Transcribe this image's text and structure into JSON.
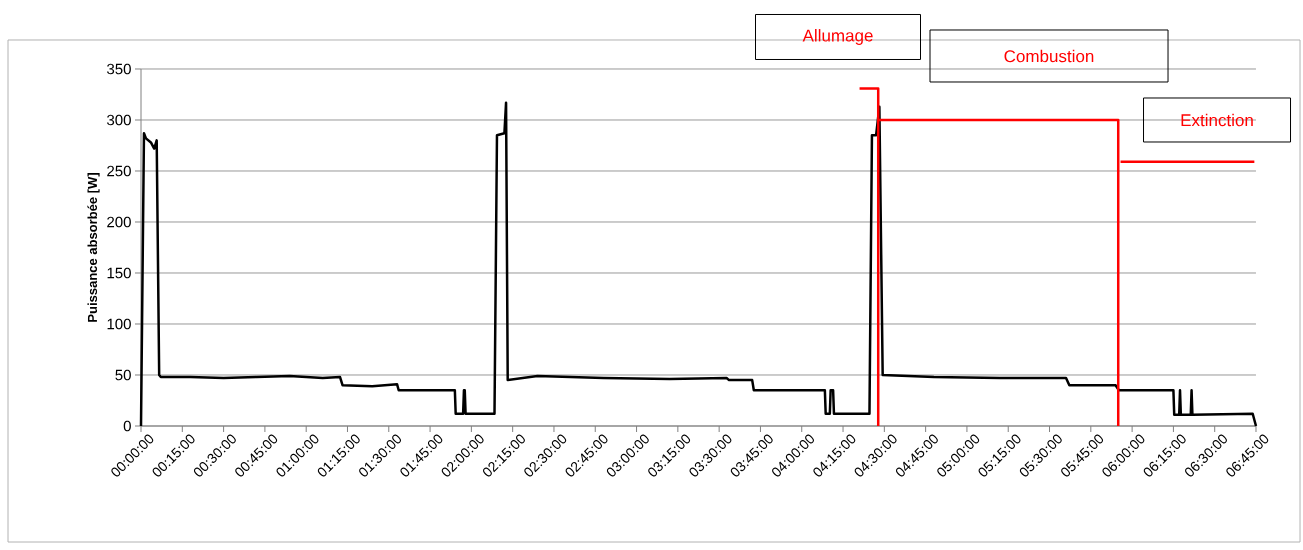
{
  "chart_data": {
    "type": "line",
    "ylabel": "Puissance absorbée [W]",
    "xlim": [
      0,
      6.75
    ],
    "ylim": [
      0,
      350
    ],
    "yticks": [
      0,
      50,
      100,
      150,
      200,
      250,
      300,
      350
    ],
    "xticks": [
      {
        "value": 0,
        "label": "00:00:00"
      },
      {
        "value": 0.25,
        "label": "00:15:00"
      },
      {
        "value": 0.5,
        "label": "00:30:00"
      },
      {
        "value": 0.75,
        "label": "00:45:00"
      },
      {
        "value": 1,
        "label": "01:00:00"
      },
      {
        "value": 1.25,
        "label": "01:15:00"
      },
      {
        "value": 1.5,
        "label": "01:30:00"
      },
      {
        "value": 1.75,
        "label": "01:45:00"
      },
      {
        "value": 2,
        "label": "02:00:00"
      },
      {
        "value": 2.25,
        "label": "02:15:00"
      },
      {
        "value": 2.5,
        "label": "02:30:00"
      },
      {
        "value": 2.75,
        "label": "02:45:00"
      },
      {
        "value": 3,
        "label": "03:00:00"
      },
      {
        "value": 3.25,
        "label": "03:15:00"
      },
      {
        "value": 3.5,
        "label": "03:30:00"
      },
      {
        "value": 3.75,
        "label": "03:45:00"
      },
      {
        "value": 4,
        "label": "04:00:00"
      },
      {
        "value": 4.25,
        "label": "04:15:00"
      },
      {
        "value": 4.5,
        "label": "04:30:00"
      },
      {
        "value": 4.75,
        "label": "04:45:00"
      },
      {
        "value": 5,
        "label": "05:00:00"
      },
      {
        "value": 5.25,
        "label": "05:15:00"
      },
      {
        "value": 5.5,
        "label": "05:30:00"
      },
      {
        "value": 5.75,
        "label": "05:45:00"
      },
      {
        "value": 6,
        "label": "06:00:00"
      },
      {
        "value": 6.25,
        "label": "06:15:00"
      },
      {
        "value": 6.5,
        "label": "06:30:00"
      },
      {
        "value": 6.75,
        "label": "06:45:00"
      }
    ],
    "grid": "y",
    "series": [
      {
        "color": "#000000",
        "x": [
          0,
          0.018,
          0.03,
          0.06,
          0.08,
          0.095,
          0.11,
          0.12,
          0.3,
          0.5,
          0.7,
          0.9,
          1.1,
          1.205,
          1.22,
          1.4,
          1.55,
          1.56,
          1.9,
          1.905,
          1.95,
          1.955,
          1.96,
          1.965,
          2.14,
          2.155,
          2.2,
          2.21,
          2.22,
          2.4,
          2.8,
          3.2,
          3.545,
          3.56,
          3.7,
          3.71,
          4.14,
          4.145,
          4.17,
          4.175,
          4.19,
          4.195,
          4.41,
          4.425,
          4.45,
          4.47,
          4.49,
          4.8,
          5.2,
          5.6,
          5.62,
          5.9,
          5.92,
          6.25,
          6.255,
          6.285,
          6.29,
          6.295,
          6.355,
          6.36,
          6.365,
          6.73,
          6.75
        ],
        "values": [
          0,
          287,
          282,
          278,
          272,
          280,
          50,
          48,
          48,
          47,
          48,
          49,
          47,
          48,
          40,
          39,
          41,
          35,
          35,
          12,
          12,
          35,
          35,
          12,
          12,
          285,
          287,
          317,
          45,
          49,
          47,
          46,
          47,
          45,
          45,
          35,
          35,
          12,
          12,
          35,
          35,
          12,
          12,
          285,
          285,
          313,
          50,
          48,
          47,
          47,
          40,
          40,
          35,
          35,
          11,
          11,
          35,
          11,
          11,
          35,
          11,
          12,
          0
        ]
      },
      {
        "color": "#ff0000",
        "x": [
          4.35,
          4.463,
          4.463
        ],
        "values": [
          331,
          331,
          0
        ]
      },
      {
        "color": "#ff0000",
        "x": [
          4.463,
          5.916,
          5.916
        ],
        "values": [
          300,
          300,
          0
        ]
      },
      {
        "color": "#ff0000",
        "x": [
          5.93,
          6.74
        ],
        "values": [
          259,
          259
        ]
      }
    ],
    "annotations": [
      "Allumage",
      "Combustion",
      "Extinction"
    ]
  }
}
